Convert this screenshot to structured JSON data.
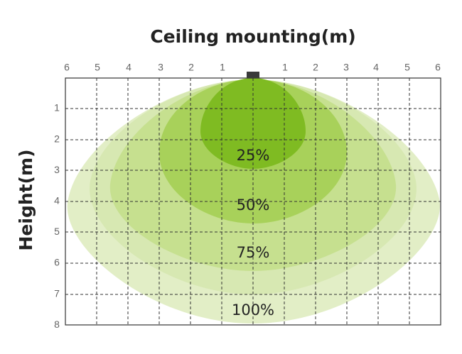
{
  "title": "Ceiling mounting(m)",
  "side_label": "Height(m)",
  "top_ticks": [
    "6",
    "5",
    "4",
    "3",
    "2",
    "1",
    "1",
    "2",
    "3",
    "4",
    "5",
    "6"
  ],
  "side_ticks": [
    "1",
    "2",
    "3",
    "4",
    "5",
    "6",
    "7",
    "8"
  ],
  "zones": [
    "25%",
    "50%",
    "75%",
    "100%"
  ]
}
